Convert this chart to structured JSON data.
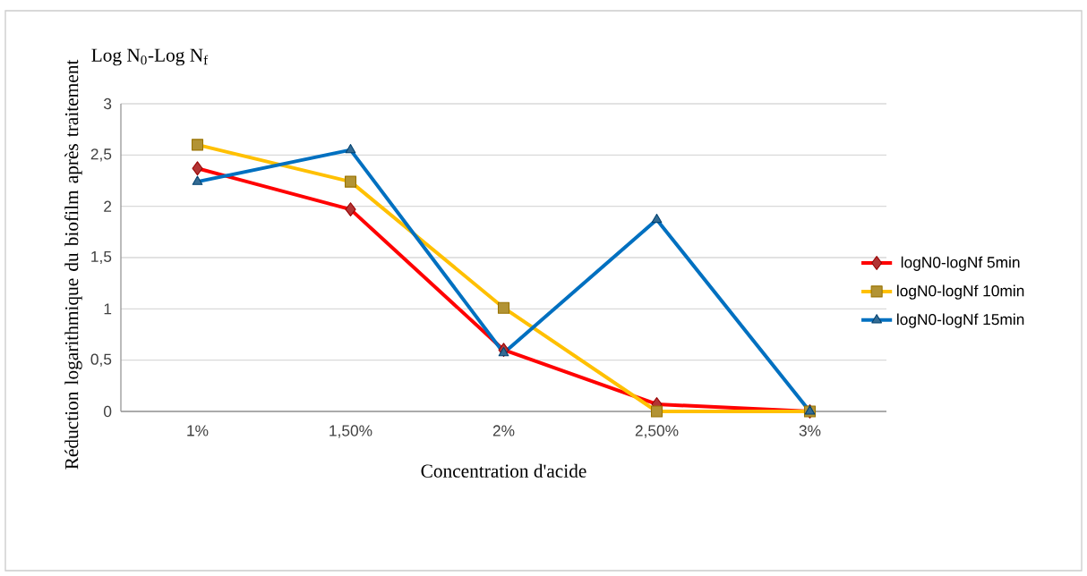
{
  "chart_data": {
    "type": "line",
    "title": "Log N$_{0}$-Log N$_{f}$",
    "xlabel": "Concentration d'acide",
    "ylabel": "Réduction logarithmique du biofilm après traitement",
    "categories": [
      "1%",
      "1,50%",
      "2%",
      "2,50%",
      "3%"
    ],
    "series": [
      {
        "name": "logN0-logNf 5min",
        "color": "#ff0000",
        "marker": "diamond",
        "values": [
          2.37,
          1.97,
          0.6,
          0.07,
          0
        ]
      },
      {
        "name": "logN0-logNf 10min",
        "color": "#ffc000",
        "marker": "square",
        "values": [
          2.6,
          2.24,
          1.01,
          0,
          0
        ]
      },
      {
        "name": "logN0-logNf 15min",
        "color": "#0070c0",
        "marker": "triangle",
        "values": [
          2.24,
          2.55,
          0.57,
          1.87,
          0
        ]
      }
    ],
    "ylim": [
      0,
      3
    ],
    "yticks": [
      0,
      {
        "value": 0.5,
        "label": "0,5"
      },
      1,
      {
        "value": 1.5,
        "label": "1,5"
      },
      2,
      {
        "value": 2.5,
        "label": "2,5"
      },
      3
    ],
    "grid": "y",
    "legend": "right",
    "line_style": "solid"
  }
}
